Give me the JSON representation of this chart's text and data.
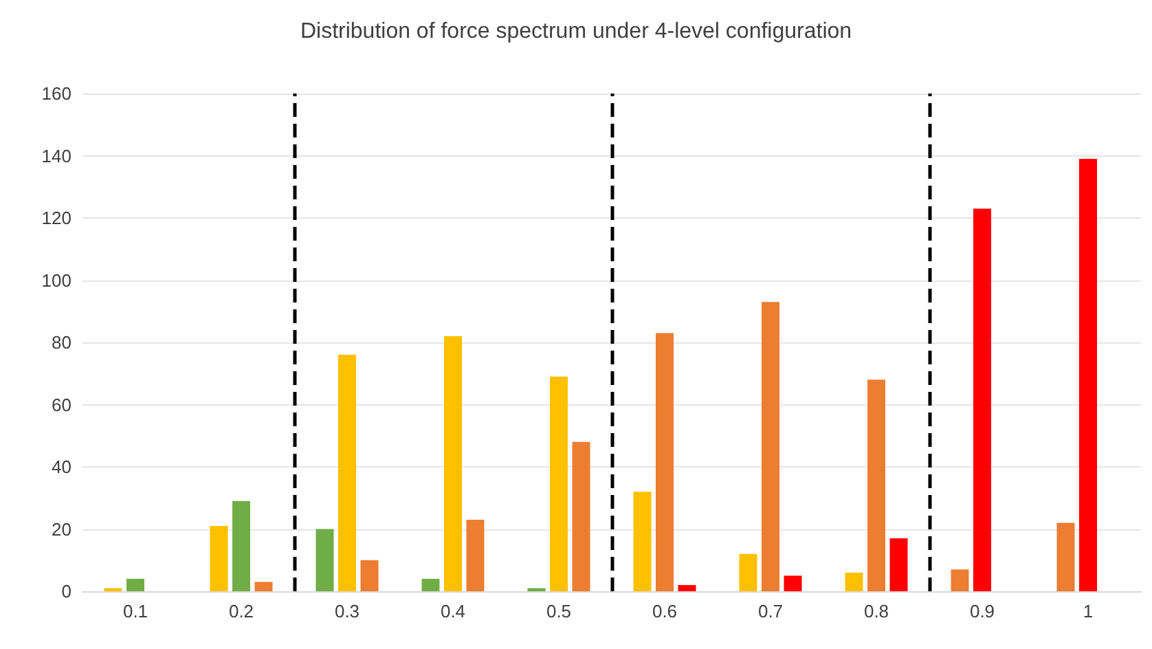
{
  "chart_data": {
    "type": "bar",
    "title": "Distribution of force spectrum under 4-level configuration",
    "x": [
      0.1,
      0.2,
      0.3,
      0.4,
      0.5,
      0.6,
      0.7,
      0.8,
      0.9,
      1
    ],
    "xlim": [
      0.05,
      1.05
    ],
    "xticks": [
      0.1,
      0.2,
      0.3,
      0.4,
      0.5,
      0.6,
      0.7,
      0.8,
      0.9,
      1
    ],
    "ylim": [
      0,
      160
    ],
    "yticks": [
      0,
      20,
      40,
      60,
      80,
      100,
      120,
      140,
      160
    ],
    "series": [
      {
        "values": [
          1,
          21,
          20,
          4,
          1,
          32,
          12,
          6,
          7,
          22
        ],
        "colors": [
          "#ffc000",
          "#ffc000",
          "#70ad47",
          "#70ad47",
          "#70ad47",
          "#ffc000",
          "#ffc000",
          "#ffc000",
          "#ed7d31",
          "#ed7d31"
        ]
      },
      {
        "values": [
          4,
          29,
          76,
          82,
          69,
          83,
          93,
          68,
          123,
          139
        ],
        "colors": [
          "#70ad47",
          "#70ad47",
          "#ffc000",
          "#ffc000",
          "#ffc000",
          "#ed7d31",
          "#ed7d31",
          "#ed7d31",
          "#ff0000",
          "#ff0000"
        ]
      },
      {
        "values": [
          null,
          3,
          10,
          23,
          48,
          2,
          5,
          17,
          null,
          null
        ],
        "colors": [
          "#ed7d31",
          "#ed7d31",
          "#ed7d31",
          "#ed7d31",
          "#ed7d31",
          "#ff0000",
          "#ff0000",
          "#ff0000",
          "#ff0000",
          "#ff0000"
        ]
      }
    ],
    "ref_lines": [
      {
        "axis": "x",
        "value": 0.25,
        "color": "#000000",
        "line_style": "dashed"
      },
      {
        "axis": "x",
        "value": 0.55,
        "color": "#000000",
        "line_style": "dashed"
      },
      {
        "axis": "x",
        "value": 0.85,
        "color": "#000000",
        "line_style": "dashed"
      }
    ],
    "grid": "y"
  }
}
